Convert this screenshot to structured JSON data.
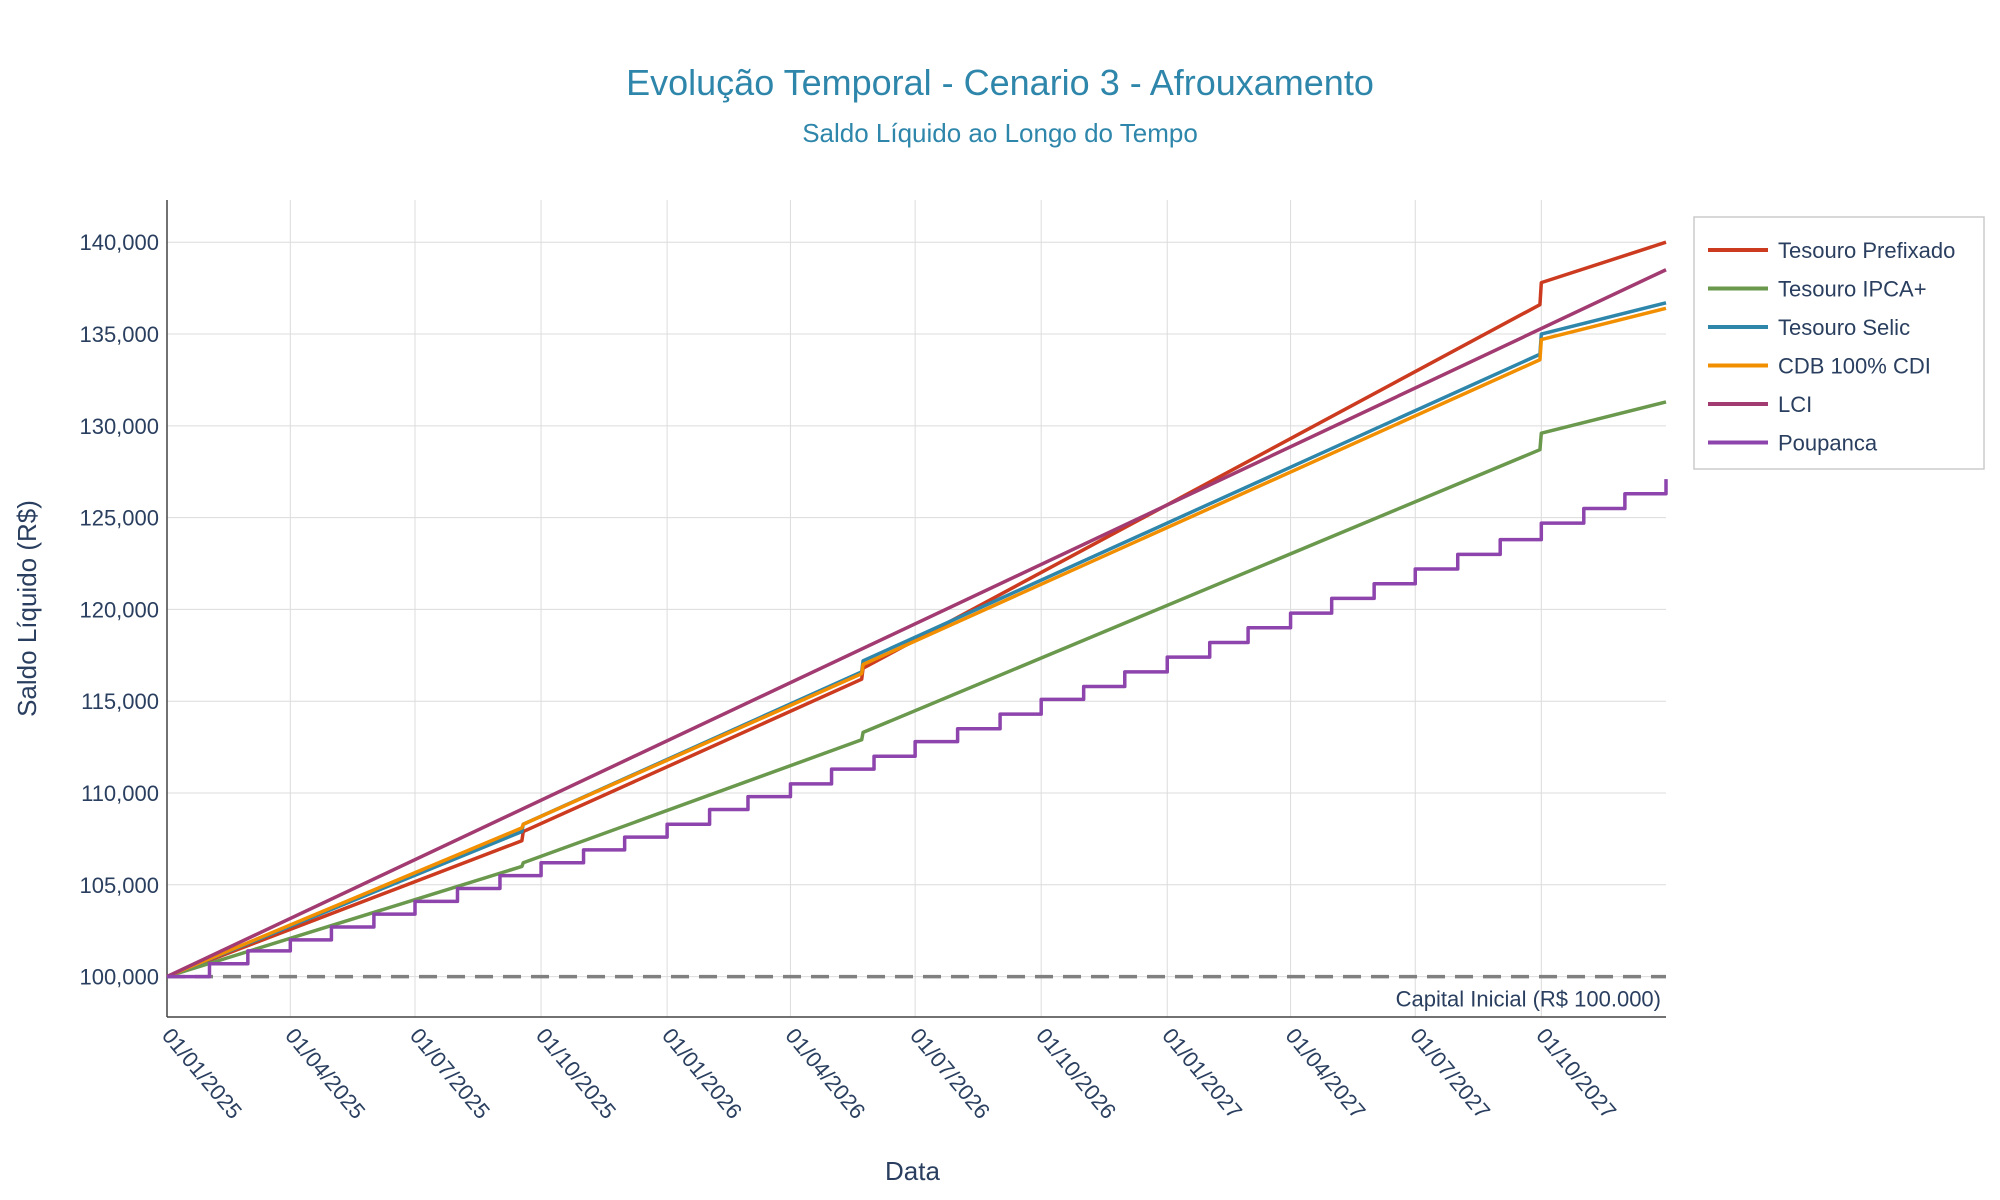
{
  "chart_data": {
    "type": "line",
    "title": "Evolução Temporal - Cenario 3 - Afrouxamento",
    "subtitle": "Saldo Líquido ao Longo do Tempo",
    "xlabel": "Data",
    "ylabel": "Saldo Líquido (R$)",
    "ylim": [
      97800,
      142300
    ],
    "xlim": [
      "2025-01-01",
      "2027-12-31"
    ],
    "grid": true,
    "legend_position": "top-right outside",
    "y_ticks": [
      100000,
      105000,
      110000,
      115000,
      120000,
      125000,
      130000,
      135000,
      140000
    ],
    "y_tick_labels": [
      "100,000",
      "105,000",
      "110,000",
      "115,000",
      "120,000",
      "125,000",
      "130,000",
      "135,000",
      "140,000"
    ],
    "x_ticks": [
      "2025-01-01",
      "2025-04-01",
      "2025-07-01",
      "2025-10-01",
      "2026-01-01",
      "2026-04-01",
      "2026-07-01",
      "2026-10-01",
      "2027-01-01",
      "2027-04-01",
      "2027-07-01",
      "2027-10-01"
    ],
    "x_tick_labels": [
      "01/01/2025",
      "01/04/2025",
      "01/07/2025",
      "01/10/2025",
      "01/01/2026",
      "01/04/2026",
      "01/07/2026",
      "01/10/2026",
      "01/01/2027",
      "01/04/2027",
      "01/07/2027",
      "01/10/2027"
    ],
    "reference_line": {
      "y": 100000,
      "label": "Capital Inicial (R$ 100.000)",
      "color": "#808080",
      "style": "dashed"
    },
    "series": [
      {
        "name": "Tesouro Prefixado",
        "color": "#cc3b1f",
        "step": false,
        "x": [
          "2025-01-01",
          "2025-09-17",
          "2025-09-18",
          "2026-05-23",
          "2026-05-24",
          "2027-09-30",
          "2027-10-01",
          "2027-12-31"
        ],
        "y": [
          100000,
          107400,
          107900,
          116200,
          116800,
          136600,
          137800,
          140000
        ]
      },
      {
        "name": "Tesouro IPCA+",
        "color": "#6a994e",
        "step": false,
        "x": [
          "2025-01-01",
          "2025-09-17",
          "2025-09-18",
          "2026-05-23",
          "2026-05-24",
          "2027-09-30",
          "2027-10-01",
          "2027-12-31"
        ],
        "y": [
          100000,
          106000,
          106200,
          112900,
          113300,
          128700,
          129600,
          131300
        ]
      },
      {
        "name": "Tesouro Selic",
        "color": "#2e86ab",
        "step": false,
        "x": [
          "2025-01-01",
          "2025-09-17",
          "2025-09-18",
          "2026-05-23",
          "2026-05-24",
          "2027-09-30",
          "2027-10-01",
          "2027-12-31"
        ],
        "y": [
          100000,
          107900,
          108300,
          116600,
          117200,
          133900,
          135000,
          136700
        ]
      },
      {
        "name": "CDB 100% CDI",
        "color": "#f18f01",
        "step": false,
        "x": [
          "2025-01-01",
          "2025-09-17",
          "2025-09-18",
          "2026-05-23",
          "2026-05-24",
          "2027-09-30",
          "2027-10-01",
          "2027-12-31"
        ],
        "y": [
          100000,
          108100,
          108300,
          116500,
          117000,
          133600,
          134700,
          136400
        ]
      },
      {
        "name": "LCI",
        "color": "#a23b72",
        "step": false,
        "x": [
          "2025-01-01",
          "2027-12-31"
        ],
        "y": [
          100000,
          138500
        ]
      },
      {
        "name": "Poupanca",
        "color": "#8e44ad",
        "step": true,
        "x": [
          "2025-01-01",
          "2025-02-01",
          "2025-03-01",
          "2025-04-01",
          "2025-05-01",
          "2025-06-01",
          "2025-07-01",
          "2025-08-01",
          "2025-09-01",
          "2025-10-01",
          "2025-11-01",
          "2025-12-01",
          "2026-01-01",
          "2026-02-01",
          "2026-03-01",
          "2026-04-01",
          "2026-05-01",
          "2026-06-01",
          "2026-07-01",
          "2026-08-01",
          "2026-09-01",
          "2026-10-01",
          "2026-11-01",
          "2026-12-01",
          "2027-01-01",
          "2027-02-01",
          "2027-03-01",
          "2027-04-01",
          "2027-05-01",
          "2027-06-01",
          "2027-07-01",
          "2027-08-01",
          "2027-09-01",
          "2027-10-01",
          "2027-11-01",
          "2027-12-01",
          "2027-12-31"
        ],
        "y": [
          100000,
          100700,
          101400,
          102000,
          102700,
          103400,
          104100,
          104800,
          105500,
          106200,
          106900,
          107600,
          108300,
          109100,
          109800,
          110500,
          111300,
          112000,
          112800,
          113500,
          114300,
          115100,
          115800,
          116600,
          117400,
          118200,
          119000,
          119800,
          120600,
          121400,
          122200,
          123000,
          123800,
          124700,
          125500,
          126300,
          127100
        ]
      }
    ]
  }
}
